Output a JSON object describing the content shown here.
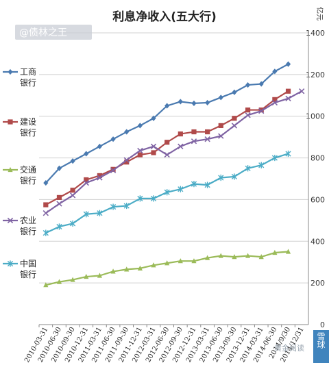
{
  "chart_data": {
    "type": "line",
    "title": "利息净收入(五大行)",
    "unit_label": "亿元",
    "ylim": [
      0,
      1400
    ],
    "yticks": [
      0,
      200,
      400,
      600,
      800,
      1000,
      1200,
      1400
    ],
    "grid": true,
    "legend_position": "left",
    "x": [
      "2010-03-31",
      "2010-06-30",
      "2010-09-30",
      "2010-12-31",
      "2011-03-31",
      "2011-06-30",
      "2011-09-30",
      "2011-12-31",
      "2012-03-31",
      "2012-06-30",
      "2012-09-30",
      "2012-12-31",
      "2013-03-31",
      "2013-06-30",
      "2013-09-30",
      "2013-12-31",
      "2014-03-31",
      "2014-06-30",
      "2014/9/30",
      "2014/12/31"
    ],
    "series": [
      {
        "name": "工商银行",
        "color": "#4a7ab0",
        "marker": "diamond",
        "values": [
          680,
          750,
          785,
          820,
          855,
          890,
          925,
          955,
          990,
          1050,
          1070,
          1062,
          1065,
          1090,
          1115,
          1150,
          1155,
          1215,
          1250,
          null
        ]
      },
      {
        "name": "建设银行",
        "color": "#b04a4a",
        "marker": "square",
        "values": [
          575,
          610,
          645,
          695,
          715,
          745,
          780,
          815,
          825,
          875,
          915,
          925,
          925,
          955,
          990,
          1030,
          1030,
          1080,
          1120,
          null
        ]
      },
      {
        "name": "交通银行",
        "color": "#9bbb59",
        "marker": "triangle",
        "values": [
          190,
          205,
          215,
          230,
          235,
          255,
          265,
          270,
          285,
          295,
          305,
          305,
          320,
          330,
          325,
          330,
          325,
          345,
          350,
          null
        ]
      },
      {
        "name": "农业银行",
        "color": "#7f63a3",
        "marker": "x",
        "values": [
          535,
          580,
          620,
          680,
          705,
          740,
          790,
          835,
          855,
          815,
          855,
          880,
          890,
          905,
          955,
          1005,
          1025,
          1065,
          1085,
          1120
        ]
      },
      {
        "name": "中国银行",
        "color": "#4bacc6",
        "marker": "star",
        "values": [
          440,
          470,
          485,
          530,
          535,
          565,
          570,
          605,
          605,
          635,
          650,
          675,
          670,
          705,
          710,
          750,
          765,
          800,
          820,
          null
        ]
      }
    ]
  },
  "watermarks": {
    "top_left": "@债林之王",
    "bottom_right": "黄金阅读",
    "corner_badge": "雪球"
  }
}
